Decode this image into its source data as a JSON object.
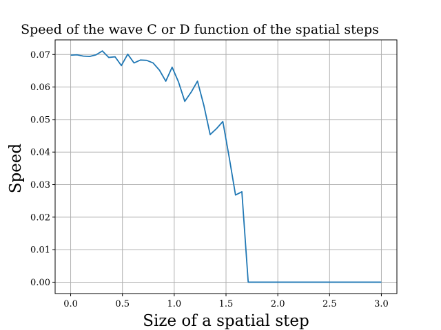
{
  "chart_data": {
    "type": "line",
    "title": "Speed of the wave C or D function of the spatial steps",
    "xlabel": "Size of a spatial step",
    "ylabel": "Speed",
    "xlim": [
      -0.15,
      3.15
    ],
    "ylim": [
      -0.0035,
      0.0745
    ],
    "xticks": [
      0.0,
      0.5,
      1.0,
      1.5,
      2.0,
      2.5,
      3.0
    ],
    "xtick_labels": [
      "0.0",
      "0.5",
      "1.0",
      "1.5",
      "2.0",
      "2.5",
      "3.0"
    ],
    "yticks": [
      0.0,
      0.01,
      0.02,
      0.03,
      0.04,
      0.05,
      0.06,
      0.07
    ],
    "ytick_labels": [
      "0.00",
      "0.01",
      "0.02",
      "0.03",
      "0.04",
      "0.05",
      "0.06",
      "0.07"
    ],
    "grid": true,
    "line_color": "#1f77b4",
    "series": [
      {
        "x": [
          0.0,
          0.0612,
          0.1224,
          0.1837,
          0.2449,
          0.3061,
          0.3673,
          0.4286,
          0.4898,
          0.551,
          0.6122,
          0.6735,
          0.7347,
          0.7959,
          0.8571,
          0.9184,
          0.9796,
          1.0408,
          1.102,
          1.1633,
          1.2245,
          1.2857,
          1.3469,
          1.4082,
          1.4694,
          1.5306,
          1.5918,
          1.6531,
          1.7143,
          1.7755,
          1.8367,
          1.898,
          1.9592,
          2.0204,
          2.0816,
          2.1429,
          2.2041,
          2.2653,
          2.3265,
          2.3878,
          2.449,
          2.5102,
          2.5714,
          2.6327,
          2.6939,
          2.7551,
          2.8163,
          2.8776,
          2.9388,
          3.0
        ],
        "y": [
          0.0698,
          0.0699,
          0.0695,
          0.0694,
          0.0699,
          0.0711,
          0.0691,
          0.0693,
          0.0666,
          0.0701,
          0.0674,
          0.0683,
          0.0682,
          0.0674,
          0.0652,
          0.0618,
          0.0661,
          0.0616,
          0.0556,
          0.0584,
          0.0618,
          0.0544,
          0.0454,
          0.0472,
          0.0494,
          0.0384,
          0.0268,
          0.0278,
          0.0,
          0.0,
          0.0,
          0.0,
          0.0,
          0.0,
          0.0,
          0.0,
          0.0,
          0.0,
          0.0,
          0.0,
          0.0,
          0.0,
          0.0,
          0.0,
          0.0,
          0.0,
          0.0,
          0.0,
          0.0,
          0.0
        ]
      }
    ]
  }
}
